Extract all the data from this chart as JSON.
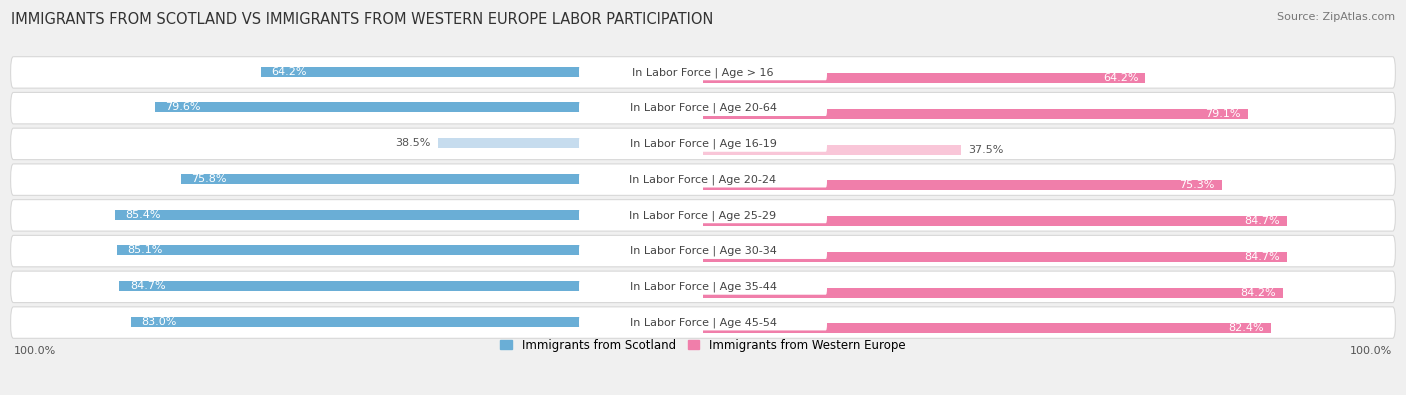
{
  "title": "IMMIGRANTS FROM SCOTLAND VS IMMIGRANTS FROM WESTERN EUROPE LABOR PARTICIPATION",
  "source": "Source: ZipAtlas.com",
  "categories": [
    "In Labor Force | Age > 16",
    "In Labor Force | Age 20-64",
    "In Labor Force | Age 16-19",
    "In Labor Force | Age 20-24",
    "In Labor Force | Age 25-29",
    "In Labor Force | Age 30-34",
    "In Labor Force | Age 35-44",
    "In Labor Force | Age 45-54"
  ],
  "scotland_values": [
    64.2,
    79.6,
    38.5,
    75.8,
    85.4,
    85.1,
    84.7,
    83.0
  ],
  "western_europe_values": [
    64.2,
    79.1,
    37.5,
    75.3,
    84.7,
    84.7,
    84.2,
    82.4
  ],
  "scotland_color": "#6aaed6",
  "western_europe_color": "#f07eaa",
  "scotland_color_light": "#c6dcee",
  "western_europe_color_light": "#f9c6d8",
  "background_color": "#f0f0f0",
  "row_bg_color": "#ffffff",
  "row_sep_color": "#d8d8d8",
  "title_fontsize": 10.5,
  "label_fontsize": 8.0,
  "value_fontsize": 8.0,
  "legend_fontsize": 8.5,
  "max_value": 100.0,
  "x_label": "100.0%"
}
